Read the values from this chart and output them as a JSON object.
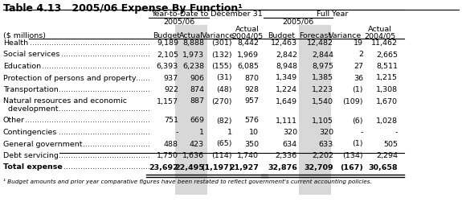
{
  "title": "Table 4.13   2005/06 Expense By Function¹",
  "footnote": "¹ Budget amounts and prior year comparative figures have been restated to reflect government's current accounting policies.",
  "unit_label": "($ millions)",
  "col_headers": [
    "Budget",
    "Actual",
    "Variance",
    "2004/05",
    "Budget",
    "Forecast",
    "Variance",
    "2004/05"
  ],
  "rows": [
    {
      "label": "Health",
      "line2": "",
      "vals": [
        "9,189",
        "8,888",
        "(301)",
        "8,442",
        "12,463",
        "12,482",
        "19",
        "11,462"
      ]
    },
    {
      "label": "Social services",
      "line2": "",
      "vals": [
        "2,105",
        "1,973",
        "(132)",
        "1,969",
        "2,842",
        "2,844",
        "2",
        "2,665"
      ]
    },
    {
      "label": "Education",
      "line2": "",
      "vals": [
        "6,393",
        "6,238",
        "(155)",
        "6,085",
        "8,948",
        "8,975",
        "27",
        "8,511"
      ]
    },
    {
      "label": "Protection of persons and property",
      "line2": "",
      "vals": [
        "937",
        "906",
        "(31)",
        "870",
        "1,349",
        "1,385",
        "36",
        "1,215"
      ]
    },
    {
      "label": "Transportation",
      "line2": "",
      "vals": [
        "922",
        "874",
        "(48)",
        "928",
        "1,224",
        "1,223",
        "(1)",
        "1,308"
      ]
    },
    {
      "label": "Natural resources and economic",
      "line2": "  development",
      "vals": [
        "1,157",
        "887",
        "(270)",
        "957",
        "1,649",
        "1,540",
        "(109)",
        "1,670"
      ]
    },
    {
      "label": "Other",
      "line2": "",
      "vals": [
        "751",
        "669",
        "(82)",
        "576",
        "1,111",
        "1,105",
        "(6)",
        "1,028"
      ]
    },
    {
      "label": "Contingencies",
      "line2": "",
      "vals": [
        "-",
        "1",
        "1",
        "10",
        "320",
        "320",
        "-",
        "-"
      ]
    },
    {
      "label": "General government",
      "line2": "",
      "vals": [
        "488",
        "423",
        "(65)",
        "350",
        "634",
        "633",
        "(1)",
        "505"
      ]
    },
    {
      "label": "Debt servicing",
      "line2": "",
      "vals": [
        "1,750",
        "1,636",
        "(114)",
        "1,740",
        "2,336",
        "2,202",
        "(134)",
        "2,294"
      ]
    }
  ],
  "total_label": "Total expense",
  "total_vals": [
    "23,692",
    "22,495",
    "(1,197)",
    "21,927",
    "32,876",
    "32,709",
    "(167)",
    "30,658"
  ],
  "bg_color": "#ffffff",
  "shade_color": "#d8d8d8",
  "fs": 6.8,
  "title_fs": 9.0
}
